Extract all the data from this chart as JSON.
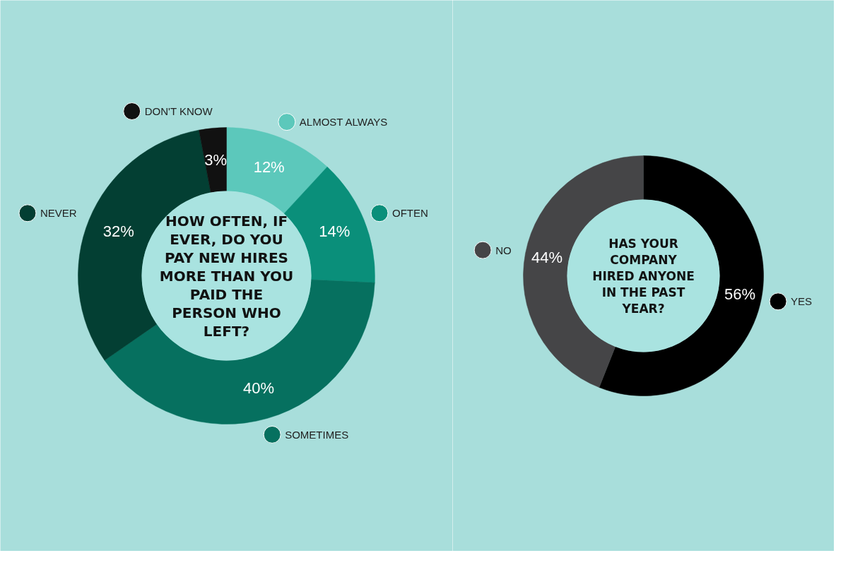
{
  "chart_data": [
    {
      "type": "donut",
      "title": "HOW OFTEN, IF EVER, DO YOU PAY NEW HIRES MORE THAN YOU PAID THE PERSON WHO LEFT?",
      "categories": [
        "ALMOST ALWAYS",
        "OFTEN",
        "SOMETIMES",
        "NEVER",
        "DON'T KNOW"
      ],
      "values": [
        12,
        14,
        40,
        32,
        3
      ],
      "colors": [
        "#5cc8bb",
        "#0a8f7a",
        "#06705f",
        "#033f33",
        "#111111"
      ],
      "value_labels": [
        "12%",
        "14%",
        "40%",
        "32%",
        "3%"
      ],
      "legend": "right"
    },
    {
      "type": "donut",
      "title": "HAS YOUR COMPANY HIRED ANYONE IN THE PAST YEAR?",
      "categories": [
        "YES",
        "NO"
      ],
      "values": [
        56,
        44
      ],
      "colors": [
        "#000000",
        "#454547"
      ],
      "value_labels": [
        "56%",
        "44%"
      ],
      "legend": "right"
    }
  ]
}
